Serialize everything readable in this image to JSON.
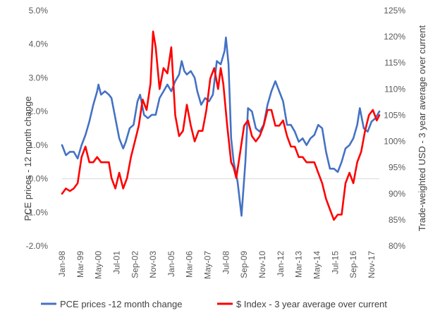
{
  "chart_data": {
    "type": "line",
    "title": "",
    "ylabel_left": "PCE prices - 12 month change",
    "ylabel_right": "Trade-weighted USD - 3 year average over current",
    "x_tick_labels": [
      "Jan-98",
      "Mar-99",
      "May-00",
      "Jul-01",
      "Sep-02",
      "Nov-03",
      "Jan-05",
      "Mar-06",
      "May-07",
      "Jul-08",
      "Sep-09",
      "Nov-10",
      "Jan-12",
      "Mar-13",
      "May-14",
      "Jul-15",
      "Sep-16",
      "Nov-17"
    ],
    "x_range": [
      "1998-01",
      "2018-05"
    ],
    "y_left": {
      "ticks": [
        "-2.0%",
        "-1.0%",
        "0.0%",
        "1.0%",
        "2.0%",
        "3.0%",
        "4.0%",
        "5.0%"
      ],
      "range": [
        -2.0,
        5.0
      ],
      "unit": "%"
    },
    "y_right": {
      "ticks": [
        "80%",
        "85%",
        "90%",
        "95%",
        "100%",
        "105%",
        "110%",
        "115%",
        "120%",
        "125%"
      ],
      "range": [
        80,
        125
      ],
      "unit": "%"
    },
    "grid": false,
    "legend_position": "bottom",
    "series": [
      {
        "name": "PCE prices -12 month change",
        "axis": "left",
        "color": "#4472C4",
        "points": [
          [
            "1998-01",
            1.0
          ],
          [
            "1998-04",
            0.7
          ],
          [
            "1998-07",
            0.8
          ],
          [
            "1998-10",
            0.8
          ],
          [
            "1999-01",
            0.6
          ],
          [
            "1999-04",
            1.0
          ],
          [
            "1999-07",
            1.3
          ],
          [
            "1999-10",
            1.7
          ],
          [
            "2000-01",
            2.2
          ],
          [
            "2000-04",
            2.6
          ],
          [
            "2000-05",
            2.8
          ],
          [
            "2000-07",
            2.5
          ],
          [
            "2000-10",
            2.6
          ],
          [
            "2001-01",
            2.5
          ],
          [
            "2001-03",
            2.4
          ],
          [
            "2001-06",
            1.8
          ],
          [
            "2001-09",
            1.2
          ],
          [
            "2001-12",
            0.9
          ],
          [
            "2002-02",
            1.1
          ],
          [
            "2002-05",
            1.5
          ],
          [
            "2002-08",
            1.6
          ],
          [
            "2002-11",
            2.3
          ],
          [
            "2003-01",
            2.5
          ],
          [
            "2003-04",
            1.9
          ],
          [
            "2003-07",
            1.8
          ],
          [
            "2003-10",
            1.9
          ],
          [
            "2004-01",
            1.9
          ],
          [
            "2004-04",
            2.4
          ],
          [
            "2004-07",
            2.6
          ],
          [
            "2004-10",
            2.8
          ],
          [
            "2005-01",
            2.6
          ],
          [
            "2005-04",
            2.9
          ],
          [
            "2005-07",
            3.1
          ],
          [
            "2005-09",
            3.5
          ],
          [
            "2005-11",
            3.2
          ],
          [
            "2006-01",
            3.1
          ],
          [
            "2006-04",
            3.2
          ],
          [
            "2006-07",
            3.0
          ],
          [
            "2006-09",
            2.6
          ],
          [
            "2006-12",
            2.2
          ],
          [
            "2007-03",
            2.4
          ],
          [
            "2007-06",
            2.3
          ],
          [
            "2007-09",
            2.5
          ],
          [
            "2007-12",
            3.5
          ],
          [
            "2008-03",
            3.4
          ],
          [
            "2008-06",
            3.8
          ],
          [
            "2008-07",
            4.2
          ],
          [
            "2008-09",
            3.4
          ],
          [
            "2008-11",
            1.2
          ],
          [
            "2009-01",
            0.5
          ],
          [
            "2009-04",
            -0.1
          ],
          [
            "2009-07",
            -1.1
          ],
          [
            "2009-10",
            0.5
          ],
          [
            "2009-12",
            2.1
          ],
          [
            "2010-03",
            2.0
          ],
          [
            "2010-06",
            1.5
          ],
          [
            "2010-09",
            1.4
          ],
          [
            "2010-12",
            1.6
          ],
          [
            "2011-03",
            2.2
          ],
          [
            "2011-06",
            2.6
          ],
          [
            "2011-09",
            2.9
          ],
          [
            "2011-12",
            2.6
          ],
          [
            "2012-03",
            2.3
          ],
          [
            "2012-06",
            1.6
          ],
          [
            "2012-09",
            1.6
          ],
          [
            "2012-12",
            1.4
          ],
          [
            "2013-03",
            1.1
          ],
          [
            "2013-06",
            1.2
          ],
          [
            "2013-09",
            1.0
          ],
          [
            "2013-12",
            1.2
          ],
          [
            "2014-03",
            1.3
          ],
          [
            "2014-06",
            1.6
          ],
          [
            "2014-09",
            1.5
          ],
          [
            "2014-12",
            0.8
          ],
          [
            "2015-03",
            0.3
          ],
          [
            "2015-06",
            0.3
          ],
          [
            "2015-09",
            0.2
          ],
          [
            "2015-12",
            0.5
          ],
          [
            "2016-03",
            0.9
          ],
          [
            "2016-06",
            1.0
          ],
          [
            "2016-09",
            1.2
          ],
          [
            "2016-12",
            1.6
          ],
          [
            "2017-02",
            2.1
          ],
          [
            "2017-05",
            1.5
          ],
          [
            "2017-08",
            1.4
          ],
          [
            "2017-11",
            1.7
          ],
          [
            "2018-02",
            1.8
          ],
          [
            "2018-05",
            2.0
          ]
        ]
      },
      {
        "name": "$ Index - 3 year average over current",
        "axis": "right",
        "color": "#FF0000",
        "points": [
          [
            "1998-01",
            90
          ],
          [
            "1998-04",
            91
          ],
          [
            "1998-07",
            90.5
          ],
          [
            "1998-10",
            91
          ],
          [
            "1999-01",
            92
          ],
          [
            "1999-04",
            97
          ],
          [
            "1999-07",
            99
          ],
          [
            "1999-10",
            96
          ],
          [
            "2000-01",
            96
          ],
          [
            "2000-04",
            97
          ],
          [
            "2000-07",
            96
          ],
          [
            "2000-10",
            96
          ],
          [
            "2001-01",
            96
          ],
          [
            "2001-03",
            93
          ],
          [
            "2001-06",
            91
          ],
          [
            "2001-09",
            94
          ],
          [
            "2001-12",
            91
          ],
          [
            "2002-03",
            93
          ],
          [
            "2002-06",
            97
          ],
          [
            "2002-09",
            100
          ],
          [
            "2002-12",
            103
          ],
          [
            "2003-03",
            108
          ],
          [
            "2003-06",
            106
          ],
          [
            "2003-09",
            111
          ],
          [
            "2003-11",
            121
          ],
          [
            "2004-01",
            118
          ],
          [
            "2004-04",
            110
          ],
          [
            "2004-07",
            114
          ],
          [
            "2004-10",
            113
          ],
          [
            "2005-01",
            118
          ],
          [
            "2005-04",
            105
          ],
          [
            "2005-07",
            101
          ],
          [
            "2005-10",
            102
          ],
          [
            "2006-01",
            107
          ],
          [
            "2006-04",
            103
          ],
          [
            "2006-07",
            100
          ],
          [
            "2006-10",
            102
          ],
          [
            "2007-01",
            102
          ],
          [
            "2007-04",
            106
          ],
          [
            "2007-07",
            112
          ],
          [
            "2007-10",
            114
          ],
          [
            "2008-01",
            110
          ],
          [
            "2008-03",
            114
          ],
          [
            "2008-05",
            111
          ],
          [
            "2008-08",
            103
          ],
          [
            "2008-11",
            96
          ],
          [
            "2009-01",
            95
          ],
          [
            "2009-03",
            93
          ],
          [
            "2009-06",
            98
          ],
          [
            "2009-09",
            103
          ],
          [
            "2009-12",
            104
          ],
          [
            "2010-03",
            101
          ],
          [
            "2010-06",
            100
          ],
          [
            "2010-09",
            101
          ],
          [
            "2010-12",
            103
          ],
          [
            "2011-03",
            106
          ],
          [
            "2011-06",
            106
          ],
          [
            "2011-09",
            103
          ],
          [
            "2011-12",
            103
          ],
          [
            "2012-03",
            104
          ],
          [
            "2012-06",
            101
          ],
          [
            "2012-09",
            99
          ],
          [
            "2012-12",
            99
          ],
          [
            "2013-03",
            97
          ],
          [
            "2013-06",
            97
          ],
          [
            "2013-09",
            96
          ],
          [
            "2013-12",
            96
          ],
          [
            "2014-03",
            96
          ],
          [
            "2014-06",
            94
          ],
          [
            "2014-09",
            92
          ],
          [
            "2014-12",
            89
          ],
          [
            "2015-03",
            87
          ],
          [
            "2015-06",
            85
          ],
          [
            "2015-09",
            86
          ],
          [
            "2015-12",
            86
          ],
          [
            "2016-03",
            92
          ],
          [
            "2016-06",
            94
          ],
          [
            "2016-09",
            92
          ],
          [
            "2016-12",
            96
          ],
          [
            "2017-03",
            98
          ],
          [
            "2017-06",
            102
          ],
          [
            "2017-09",
            105
          ],
          [
            "2017-12",
            106
          ],
          [
            "2018-03",
            104
          ],
          [
            "2018-05",
            105
          ]
        ]
      }
    ]
  }
}
